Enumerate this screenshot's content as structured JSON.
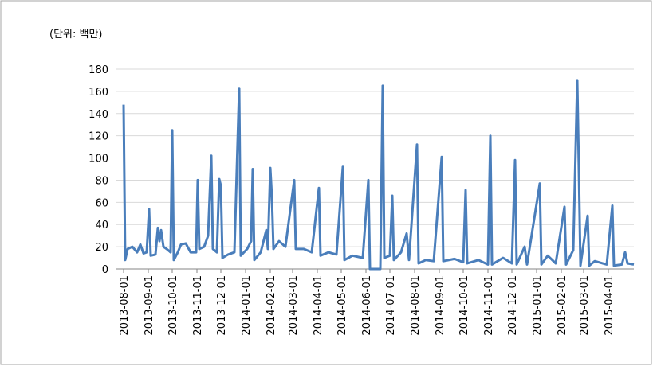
{
  "chart_data": {
    "type": "line",
    "y_label": "(단위: 백만)",
    "x": [
      "2013-08-01",
      "2013-08-03",
      "2013-08-06",
      "2013-08-12",
      "2013-08-18",
      "2013-08-22",
      "2013-08-26",
      "2013-08-30",
      "2013-09-02",
      "2013-09-04",
      "2013-09-10",
      "2013-09-13",
      "2013-09-15",
      "2013-09-17",
      "2013-09-20",
      "2013-09-24",
      "2013-09-29",
      "2013-10-01",
      "2013-10-03",
      "2013-10-08",
      "2013-10-12",
      "2013-10-18",
      "2013-10-24",
      "2013-10-31",
      "2013-11-02",
      "2013-11-04",
      "2013-11-10",
      "2013-11-15",
      "2013-11-19",
      "2013-11-21",
      "2013-11-26",
      "2013-11-29",
      "2013-12-01",
      "2013-12-03",
      "2013-12-10",
      "2013-12-18",
      "2013-12-24",
      "2013-12-26",
      "2014-01-03",
      "2014-01-08",
      "2014-01-10",
      "2014-01-12",
      "2014-01-20",
      "2014-01-27",
      "2014-01-29",
      "2014-02-01",
      "2014-02-03",
      "2014-02-05",
      "2014-02-12",
      "2014-02-20",
      "2014-03-03",
      "2014-03-05",
      "2014-03-15",
      "2014-03-25",
      "2014-04-03",
      "2014-04-05",
      "2014-04-15",
      "2014-04-25",
      "2014-05-03",
      "2014-05-05",
      "2014-05-15",
      "2014-05-28",
      "2014-06-04",
      "2014-06-06",
      "2014-06-19",
      "2014-06-22",
      "2014-06-24",
      "2014-07-01",
      "2014-07-04",
      "2014-07-06",
      "2014-07-15",
      "2014-07-22",
      "2014-07-25",
      "2014-08-04",
      "2014-08-06",
      "2014-08-15",
      "2014-08-25",
      "2014-09-04",
      "2014-09-06",
      "2014-09-20",
      "2014-10-01",
      "2014-10-04",
      "2014-10-06",
      "2014-10-20",
      "2014-11-01",
      "2014-11-04",
      "2014-11-06",
      "2014-11-20",
      "2014-12-01",
      "2014-12-05",
      "2014-12-07",
      "2014-12-17",
      "2014-12-20",
      "2015-01-05",
      "2015-01-07",
      "2015-01-15",
      "2015-01-25",
      "2015-02-05",
      "2015-02-07",
      "2015-02-16",
      "2015-02-21",
      "2015-02-23",
      "2015-02-25",
      "2015-03-06",
      "2015-03-08",
      "2015-03-15",
      "2015-03-30",
      "2015-04-06",
      "2015-04-08",
      "2015-04-18",
      "2015-04-22",
      "2015-04-25",
      "2015-05-03"
    ],
    "series": [
      {
        "color": "#4a7ebb",
        "values": [
          148,
          8,
          18,
          20,
          15,
          22,
          14,
          15,
          54,
          12,
          13,
          37,
          25,
          35,
          20,
          18,
          15,
          125,
          8,
          15,
          22,
          23,
          15,
          15,
          80,
          18,
          20,
          30,
          102,
          18,
          15,
          81,
          75,
          10,
          13,
          15,
          163,
          12,
          18,
          25,
          90,
          8,
          15,
          35,
          18,
          91,
          65,
          18,
          25,
          20,
          80,
          18,
          18,
          15,
          73,
          12,
          15,
          13,
          92,
          8,
          12,
          10,
          80,
          0,
          0,
          165,
          10,
          12,
          66,
          8,
          15,
          32,
          8,
          112,
          5,
          8,
          7,
          101,
          7,
          9,
          6,
          71,
          5,
          8,
          4,
          120,
          4,
          10,
          5,
          98,
          4,
          20,
          4,
          77,
          4,
          12,
          5,
          56,
          4,
          17,
          170,
          90,
          3,
          48,
          3,
          7,
          4,
          57,
          3,
          4,
          15,
          5,
          4
        ]
      }
    ],
    "xlim": [
      "2013-08-01",
      "2015-05-03"
    ],
    "xticks": [
      "2013-08-01",
      "2013-09-01",
      "2013-10-01",
      "2013-11-01",
      "2013-12-01",
      "2014-01-01",
      "2014-02-01",
      "2014-03-01",
      "2014-04-01",
      "2014-05-01",
      "2014-06-01",
      "2014-07-01",
      "2014-08-01",
      "2014-09-01",
      "2014-10-01",
      "2014-11-01",
      "2014-12-01",
      "2015-01-01",
      "2015-02-01",
      "2015-03-01",
      "2015-04-01"
    ],
    "ylim": [
      0,
      180
    ],
    "yticks": [
      0,
      20,
      40,
      60,
      80,
      100,
      120,
      140,
      160,
      180
    ],
    "grid": true
  }
}
